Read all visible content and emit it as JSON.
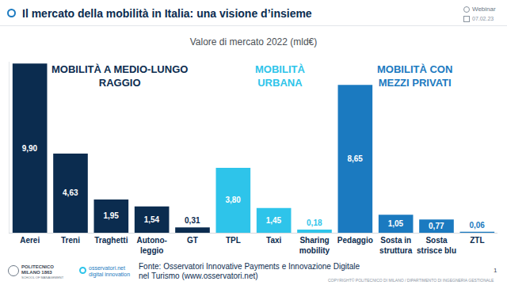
{
  "chart_data": {
    "type": "bar",
    "title": "Valore di mercato 2022 (mld€)",
    "categories": [
      "Aerei",
      "Treni",
      "Traghetti",
      "Autono-\nleggio",
      "GT",
      "TPL",
      "Taxi",
      "Sharing\nmobility",
      "Pedaggio",
      "Sosta in\nstruttura",
      "Sosta\nstrisce blu",
      "ZTL"
    ],
    "values": [
      9.9,
      4.63,
      1.95,
      1.54,
      0.31,
      3.8,
      1.45,
      0.18,
      8.65,
      1.05,
      0.77,
      0.06
    ],
    "value_labels": [
      "9,90",
      "4,63",
      "1,95",
      "1,54",
      "0,31",
      "3,80",
      "1,45",
      "0,18",
      "8,65",
      "1,05",
      "0,77",
      "0,06"
    ],
    "colors": [
      "#0b2c4f",
      "#0b2c4f",
      "#0b2c4f",
      "#0b2c4f",
      "#0b2c4f",
      "#2ec4ea",
      "#2ec4ea",
      "#2ec4ea",
      "#1b7ac0",
      "#1b7ac0",
      "#1b7ac0",
      "#1b7ac0"
    ],
    "data_labels": true,
    "tick_labels": "x",
    "grid": false,
    "ylim": [
      0,
      10
    ],
    "yticks": [],
    "groups": [
      {
        "text": "MOBILITÀ A MEDIO-LUNGO\nRAGGIO",
        "color": "#0b2c4f",
        "from": "Aerei",
        "to": "GT"
      },
      {
        "text": "MOBILITÀ\nURBANA",
        "color": "#2ec4ea",
        "from": "TPL",
        "to": "Sharing\nmobility"
      },
      {
        "text": "MOBILITÀ CON\nMEZZI PRIVATI",
        "color": "#1b7ac0",
        "from": "Pedaggio",
        "to": "ZTL"
      }
    ]
  },
  "page": {
    "title": "Il mercato della mobilità in Italia: una visione d’insieme",
    "event": "Webinar",
    "date": "07.02.23",
    "source": "Fonte: Osservatori Innovative Payments e Innovazione Digitale\nnel Turismo (www.osservatori.net)",
    "logo_polimi": "POLITECNICO\nMILANO 1863",
    "logo_polimi_sub": "SCHOOL OF MANAGEMENT",
    "logo_osservatori": "osservatori.net\ndigital innovation",
    "copyright": "COPYRIGHT© POLITECNICO DI MILANO / DIPARTIMENTO DI INGEGNERIA GESTIONALE",
    "page_number": 1
  }
}
